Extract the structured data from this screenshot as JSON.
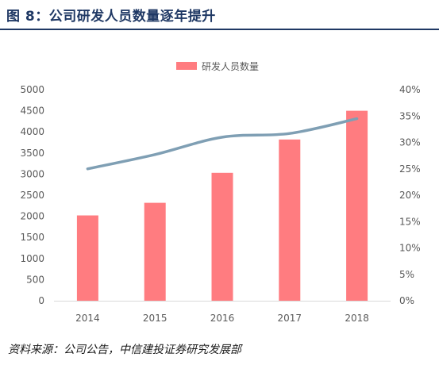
{
  "header": {
    "title": "图 8：公司研发人员数量逐年提升"
  },
  "footer": {
    "source": "资料来源：公司公告，中信建投证券研究发展部"
  },
  "colors": {
    "title": "#1f3864",
    "bar": "#ff7c80",
    "line": "#7f9fb4",
    "axis_text": "#595959"
  },
  "chart_data": {
    "type": "bar",
    "categories": [
      "2014",
      "2015",
      "2016",
      "2017",
      "2018"
    ],
    "series": [
      {
        "name": "研发人员数量",
        "type": "bar",
        "axis": "left",
        "values": [
          2020,
          2320,
          3030,
          3820,
          4500
        ]
      },
      {
        "type": "line",
        "axis": "right",
        "values": [
          0.25,
          0.277,
          0.31,
          0.317,
          0.345
        ]
      }
    ],
    "y_left": {
      "ylim": [
        0,
        5000
      ],
      "ticks": [
        "0",
        "500",
        "1000",
        "1500",
        "2000",
        "2500",
        "3000",
        "3500",
        "4000",
        "4500",
        "5000"
      ]
    },
    "y_right": {
      "ylim": [
        0,
        0.4
      ],
      "ticks": [
        "0%",
        "5%",
        "10%",
        "15%",
        "20%",
        "25%",
        "30%",
        "35%",
        "40%"
      ]
    },
    "legend_position": "top-center",
    "grid": false
  }
}
